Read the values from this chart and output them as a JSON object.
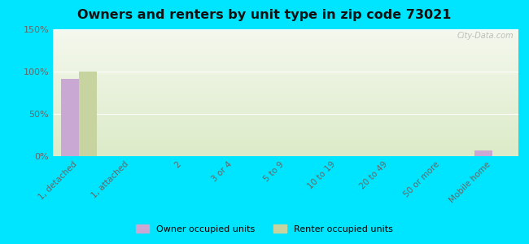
{
  "title": "Owners and renters by unit type in zip code 73021",
  "categories": [
    "1, detached",
    "1, attached",
    "2",
    "3 or 4",
    "5 to 9",
    "10 to 19",
    "20 to 49",
    "50 or more",
    "Mobile home"
  ],
  "owner_values": [
    91,
    0,
    0,
    0,
    0,
    0,
    0,
    0,
    7
  ],
  "renter_values": [
    100,
    0,
    0,
    0,
    0,
    0,
    0,
    0,
    0
  ],
  "owner_color": "#c9a8d4",
  "renter_color": "#c8d4a0",
  "background_outer": "#00e5ff",
  "bg_gradient_top": "#f5f8ee",
  "bg_gradient_bottom": "#e8f0d8",
  "ylim": [
    0,
    150
  ],
  "yticks": [
    0,
    50,
    100,
    150
  ],
  "ytick_labels": [
    "0%",
    "50%",
    "100%",
    "150%"
  ],
  "bar_width": 0.35,
  "legend_owner": "Owner occupied units",
  "legend_renter": "Renter occupied units",
  "watermark": "City-Data.com"
}
